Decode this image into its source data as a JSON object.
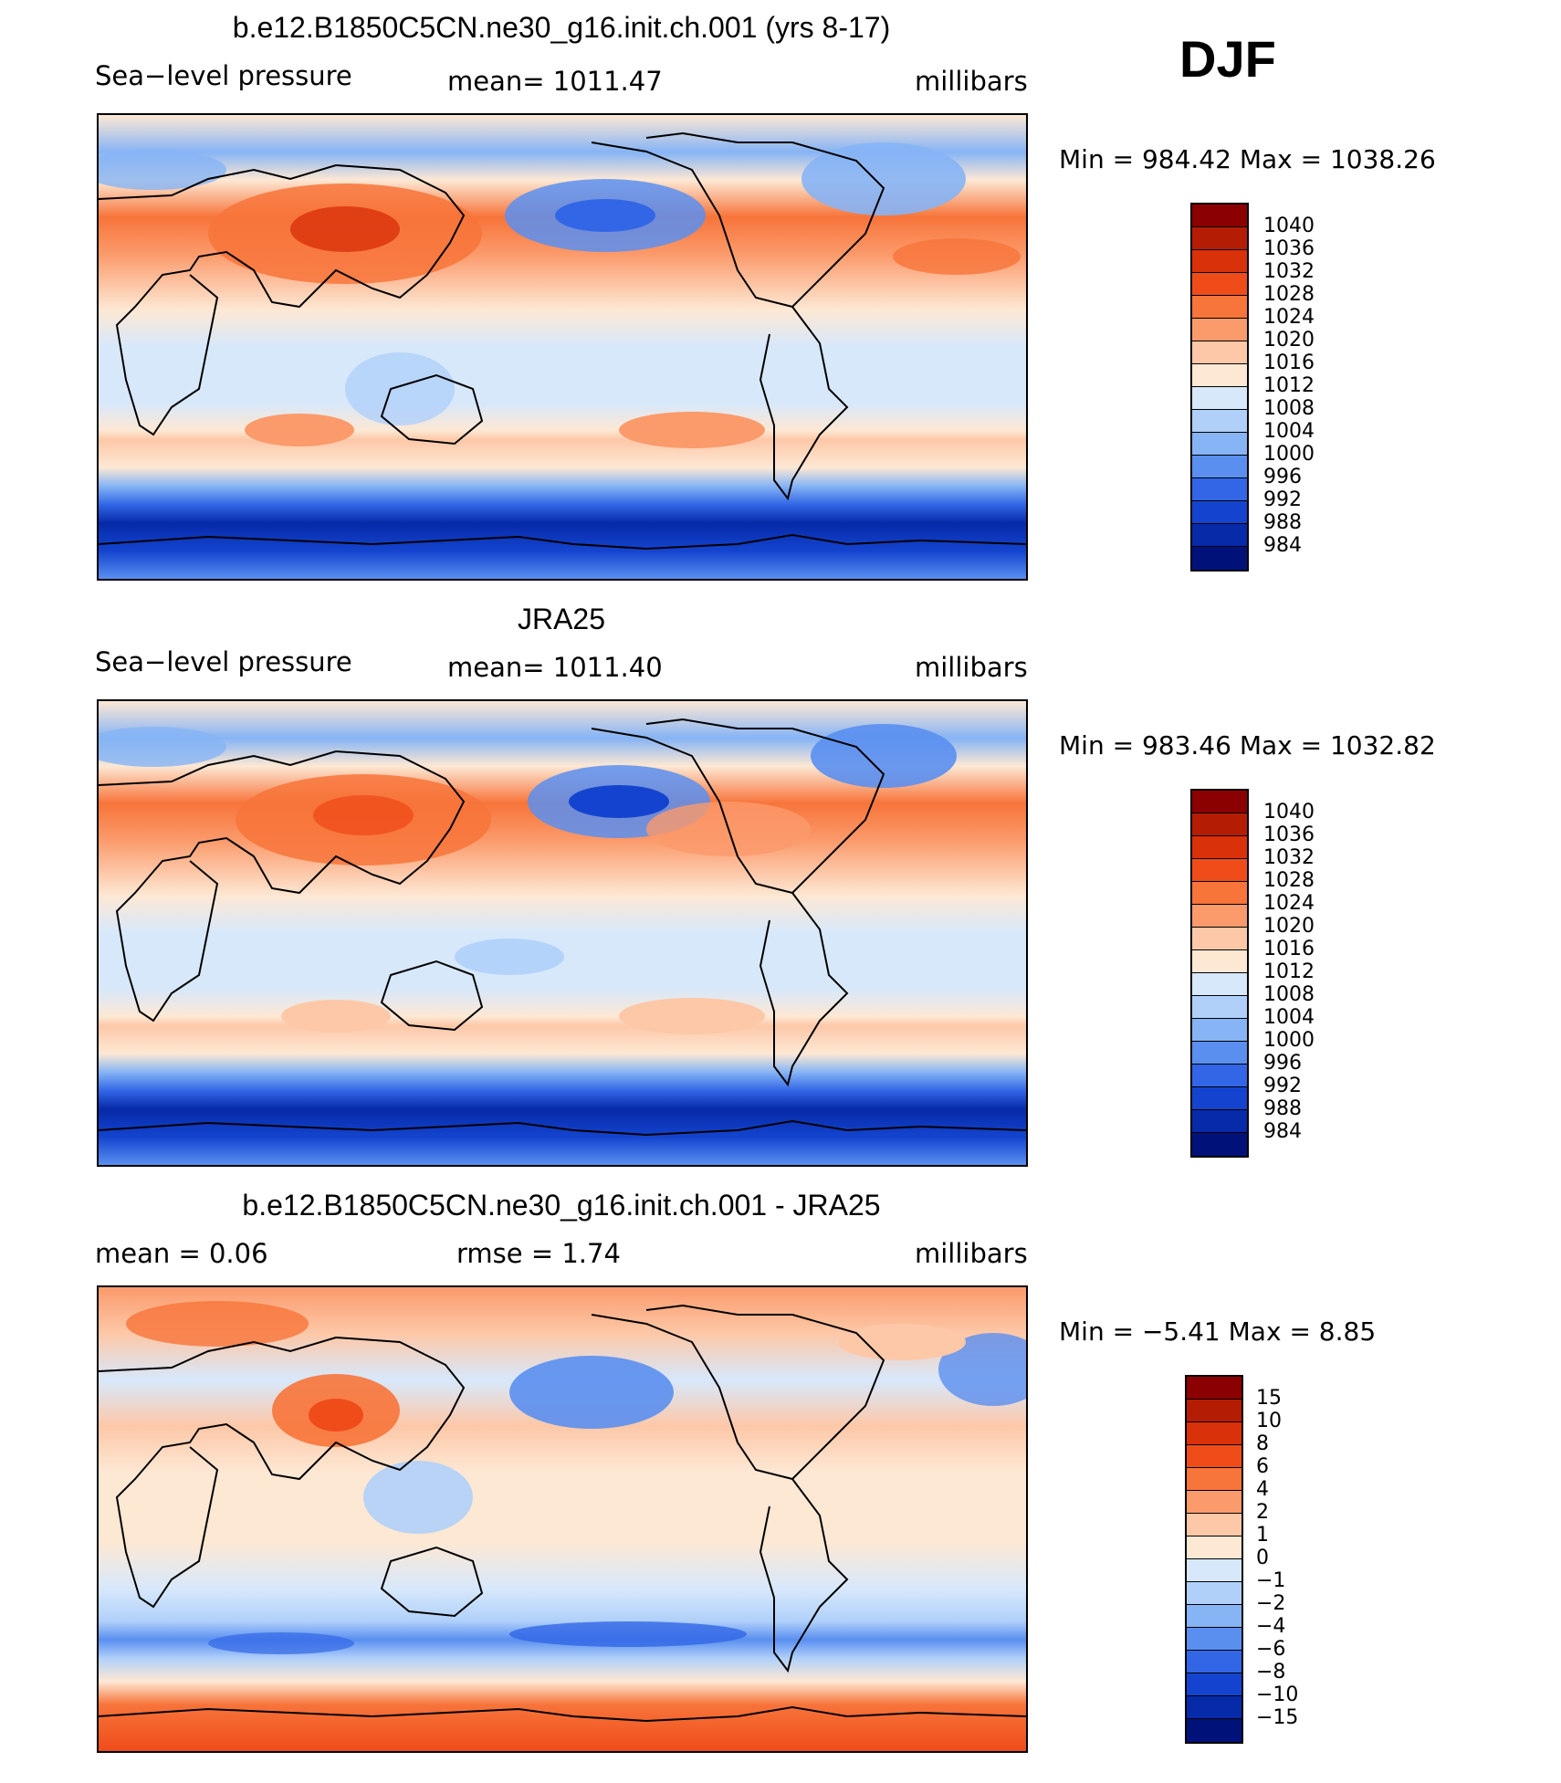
{
  "season": "DJF",
  "panels": [
    {
      "title": "b.e12.B1850C5CN.ne30_g16.init.ch.001 (yrs 8-17)",
      "left": "Sea−level pressure",
      "center": "mean=  1011.47",
      "right": "millibars",
      "minmax": "Min  =  984.42  Max  =  1038.26",
      "kind": "abs"
    },
    {
      "title": "JRA25",
      "left": "Sea−level pressure",
      "center": "mean=  1011.40",
      "right": "millibars",
      "minmax": "Min  =  983.46  Max  =  1032.82",
      "kind": "abs"
    },
    {
      "title": "b.e12.B1850C5CN.ne30_g16.init.ch.001 - JRA25",
      "left": "mean  =     0.06",
      "center": "rmse  =     1.74",
      "right": "millibars",
      "minmax": "Min  =    −5.41  Max  =     8.85",
      "kind": "diff"
    }
  ],
  "colorbar_abs": {
    "labels": [
      "1040",
      "1036",
      "1032",
      "1028",
      "1024",
      "1020",
      "1016",
      "1012",
      "1008",
      "1004",
      "1000",
      "996",
      "992",
      "988",
      "984"
    ],
    "colors": [
      "#8b0000",
      "#b51c04",
      "#d9310a",
      "#f04c1a",
      "#f7743a",
      "#fb9a6b",
      "#fdc8a8",
      "#fde8d4",
      "#d7e8fb",
      "#b0d0fa",
      "#86b4f5",
      "#5a8ff0",
      "#3266e6",
      "#1444cf",
      "#062aa8",
      "#00127a"
    ]
  },
  "colorbar_diff": {
    "labels": [
      "15",
      "10",
      "8",
      "6",
      "4",
      "2",
      "1",
      "0",
      "−1",
      "−2",
      "−4",
      "−6",
      "−8",
      "−10",
      "−15"
    ],
    "colors": [
      "#8b0000",
      "#b51c04",
      "#d9310a",
      "#f04c1a",
      "#f7743a",
      "#fb9a6b",
      "#fdc8a8",
      "#fde8d4",
      "#d7e8fb",
      "#b0d0fa",
      "#86b4f5",
      "#5a8ff0",
      "#3266e6",
      "#1444cf",
      "#062aa8",
      "#00127a"
    ]
  }
}
